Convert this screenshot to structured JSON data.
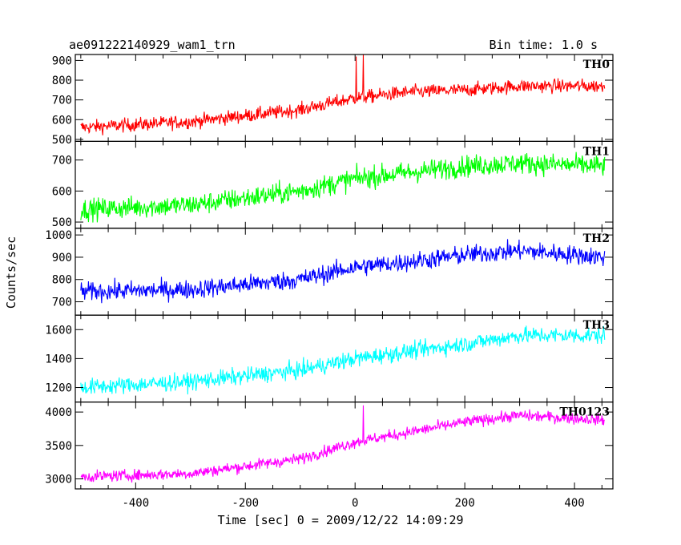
{
  "header": {
    "title": "ae091222140929_wam1_trn",
    "bin_time": "Bin time: 1.0 s"
  },
  "chart_data": {
    "type": "line",
    "title": "ae091222140929_wam1_trn",
    "xlabel": "Time [sec] 0 = 2009/12/22 14:09:29",
    "ylabel": "Counts/sec",
    "xlim": [
      -510,
      470
    ],
    "x_ticks": [
      -400,
      -200,
      0,
      200,
      400
    ],
    "data_range": [
      -500,
      455
    ],
    "grid": false,
    "panels": [
      {
        "name": "TH0",
        "color": "#ff0000",
        "ylim": [
          490,
          930
        ],
        "y_ticks": [
          500,
          600,
          700,
          800,
          900
        ],
        "trend": [
          [
            -500,
            560
          ],
          [
            -300,
            590
          ],
          [
            -100,
            650
          ],
          [
            0,
            710
          ],
          [
            100,
            740
          ],
          [
            200,
            750
          ],
          [
            300,
            770
          ],
          [
            455,
            770
          ]
        ],
        "noise": 45,
        "spikes": [
          [
            2,
            920
          ],
          [
            15,
            930
          ]
        ]
      },
      {
        "name": "TH1",
        "color": "#00ff00",
        "ylim": [
          480,
          760
        ],
        "y_ticks": [
          500,
          600,
          700
        ],
        "trend": [
          [
            -500,
            540
          ],
          [
            -300,
            555
          ],
          [
            -100,
            600
          ],
          [
            0,
            640
          ],
          [
            100,
            660
          ],
          [
            200,
            680
          ],
          [
            300,
            690
          ],
          [
            455,
            680
          ]
        ],
        "noise": 45,
        "spikes": []
      },
      {
        "name": "TH2",
        "color": "#0000ff",
        "ylim": [
          640,
          1030
        ],
        "y_ticks": [
          700,
          800,
          900,
          1000
        ],
        "trend": [
          [
            -500,
            745
          ],
          [
            -300,
            755
          ],
          [
            -100,
            800
          ],
          [
            0,
            855
          ],
          [
            100,
            880
          ],
          [
            200,
            910
          ],
          [
            300,
            930
          ],
          [
            455,
            900
          ]
        ],
        "noise": 55,
        "spikes": []
      },
      {
        "name": "TH3",
        "color": "#00ffff",
        "ylim": [
          1100,
          1700
        ],
        "y_ticks": [
          1200,
          1400,
          1600
        ],
        "trend": [
          [
            -500,
            1200
          ],
          [
            -300,
            1240
          ],
          [
            -100,
            1320
          ],
          [
            0,
            1400
          ],
          [
            100,
            1450
          ],
          [
            200,
            1500
          ],
          [
            300,
            1560
          ],
          [
            455,
            1560
          ]
        ],
        "noise": 75,
        "spikes": []
      },
      {
        "name": "TH0123",
        "color": "#ff00ff",
        "ylim": [
          2850,
          4150
        ],
        "y_ticks": [
          3000,
          3500,
          4000
        ],
        "trend": [
          [
            -500,
            3030
          ],
          [
            -300,
            3080
          ],
          [
            -100,
            3300
          ],
          [
            0,
            3550
          ],
          [
            100,
            3700
          ],
          [
            200,
            3850
          ],
          [
            300,
            3950
          ],
          [
            455,
            3880
          ]
        ],
        "noise": 110,
        "spikes": [
          [
            15,
            4100
          ]
        ]
      }
    ]
  }
}
